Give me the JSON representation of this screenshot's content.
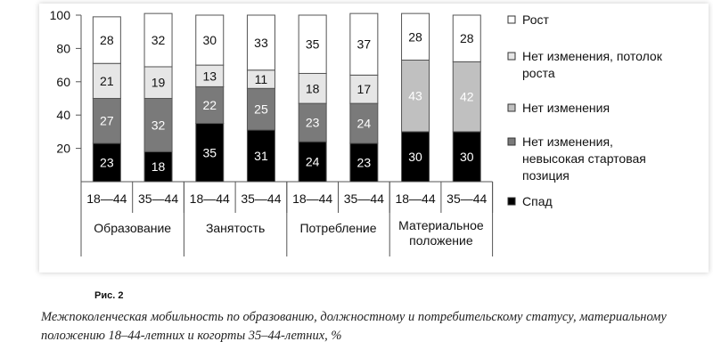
{
  "figure_label": "Рис. 2",
  "caption": "Межпоколенческая мобильность по образованию, должностному и потребительскому статусу, материальному положению 18–44-летних и когорты 35–44-летних, %",
  "chart_data": {
    "type": "bar",
    "stacked": true,
    "title": "",
    "xlabel": "",
    "ylabel": "",
    "ylim": [
      0,
      100
    ],
    "y_ticks": [
      20,
      40,
      60,
      80,
      100
    ],
    "grid": false,
    "legend_position": "right",
    "groups": [
      {
        "label": "Образование",
        "categories": [
          "18—44",
          "35—44"
        ]
      },
      {
        "label": "Занятость",
        "categories": [
          "18—44",
          "35—44"
        ]
      },
      {
        "label": "Потребление",
        "categories": [
          "18—44",
          "35—44"
        ]
      },
      {
        "label": "Материальное положение",
        "label_lines": [
          "Материальное",
          "положение"
        ],
        "categories": [
          "18—44",
          "35—44"
        ]
      }
    ],
    "series": [
      {
        "name": "Спад",
        "color": "#000000",
        "label_color": "#ffffff",
        "values": [
          23,
          18,
          35,
          31,
          24,
          23,
          30,
          30
        ]
      },
      {
        "name": "Нет изменения, невысокая стартовая позиция",
        "legend_lines": [
          "Нет изменения,",
          "невысокая стартовая",
          "позиция"
        ],
        "color": "#7a7a7a",
        "label_color": "#ffffff",
        "values": [
          27,
          32,
          22,
          25,
          23,
          24,
          0,
          0
        ]
      },
      {
        "name": "Нет изменения",
        "color": "#c0c0c0",
        "label_color": "#ffffff",
        "values": [
          0,
          0,
          0,
          0,
          0,
          0,
          43,
          42
        ]
      },
      {
        "name": "Нет изменения, потолок роста",
        "legend_lines": [
          "Нет изменения, потолок",
          "роста"
        ],
        "color": "#e6e6e6",
        "label_color": "#111111",
        "values": [
          21,
          19,
          13,
          11,
          18,
          17,
          0,
          0
        ]
      },
      {
        "name": "Рост",
        "color": "#ffffff",
        "label_color": "#111111",
        "values": [
          28,
          32,
          30,
          33,
          35,
          37,
          28,
          28
        ]
      }
    ],
    "legend_order": [
      "Рост",
      "Нет изменения, потолок роста",
      "Нет изменения",
      "Нет изменения, невысокая стартовая позиция",
      "Спад"
    ]
  }
}
